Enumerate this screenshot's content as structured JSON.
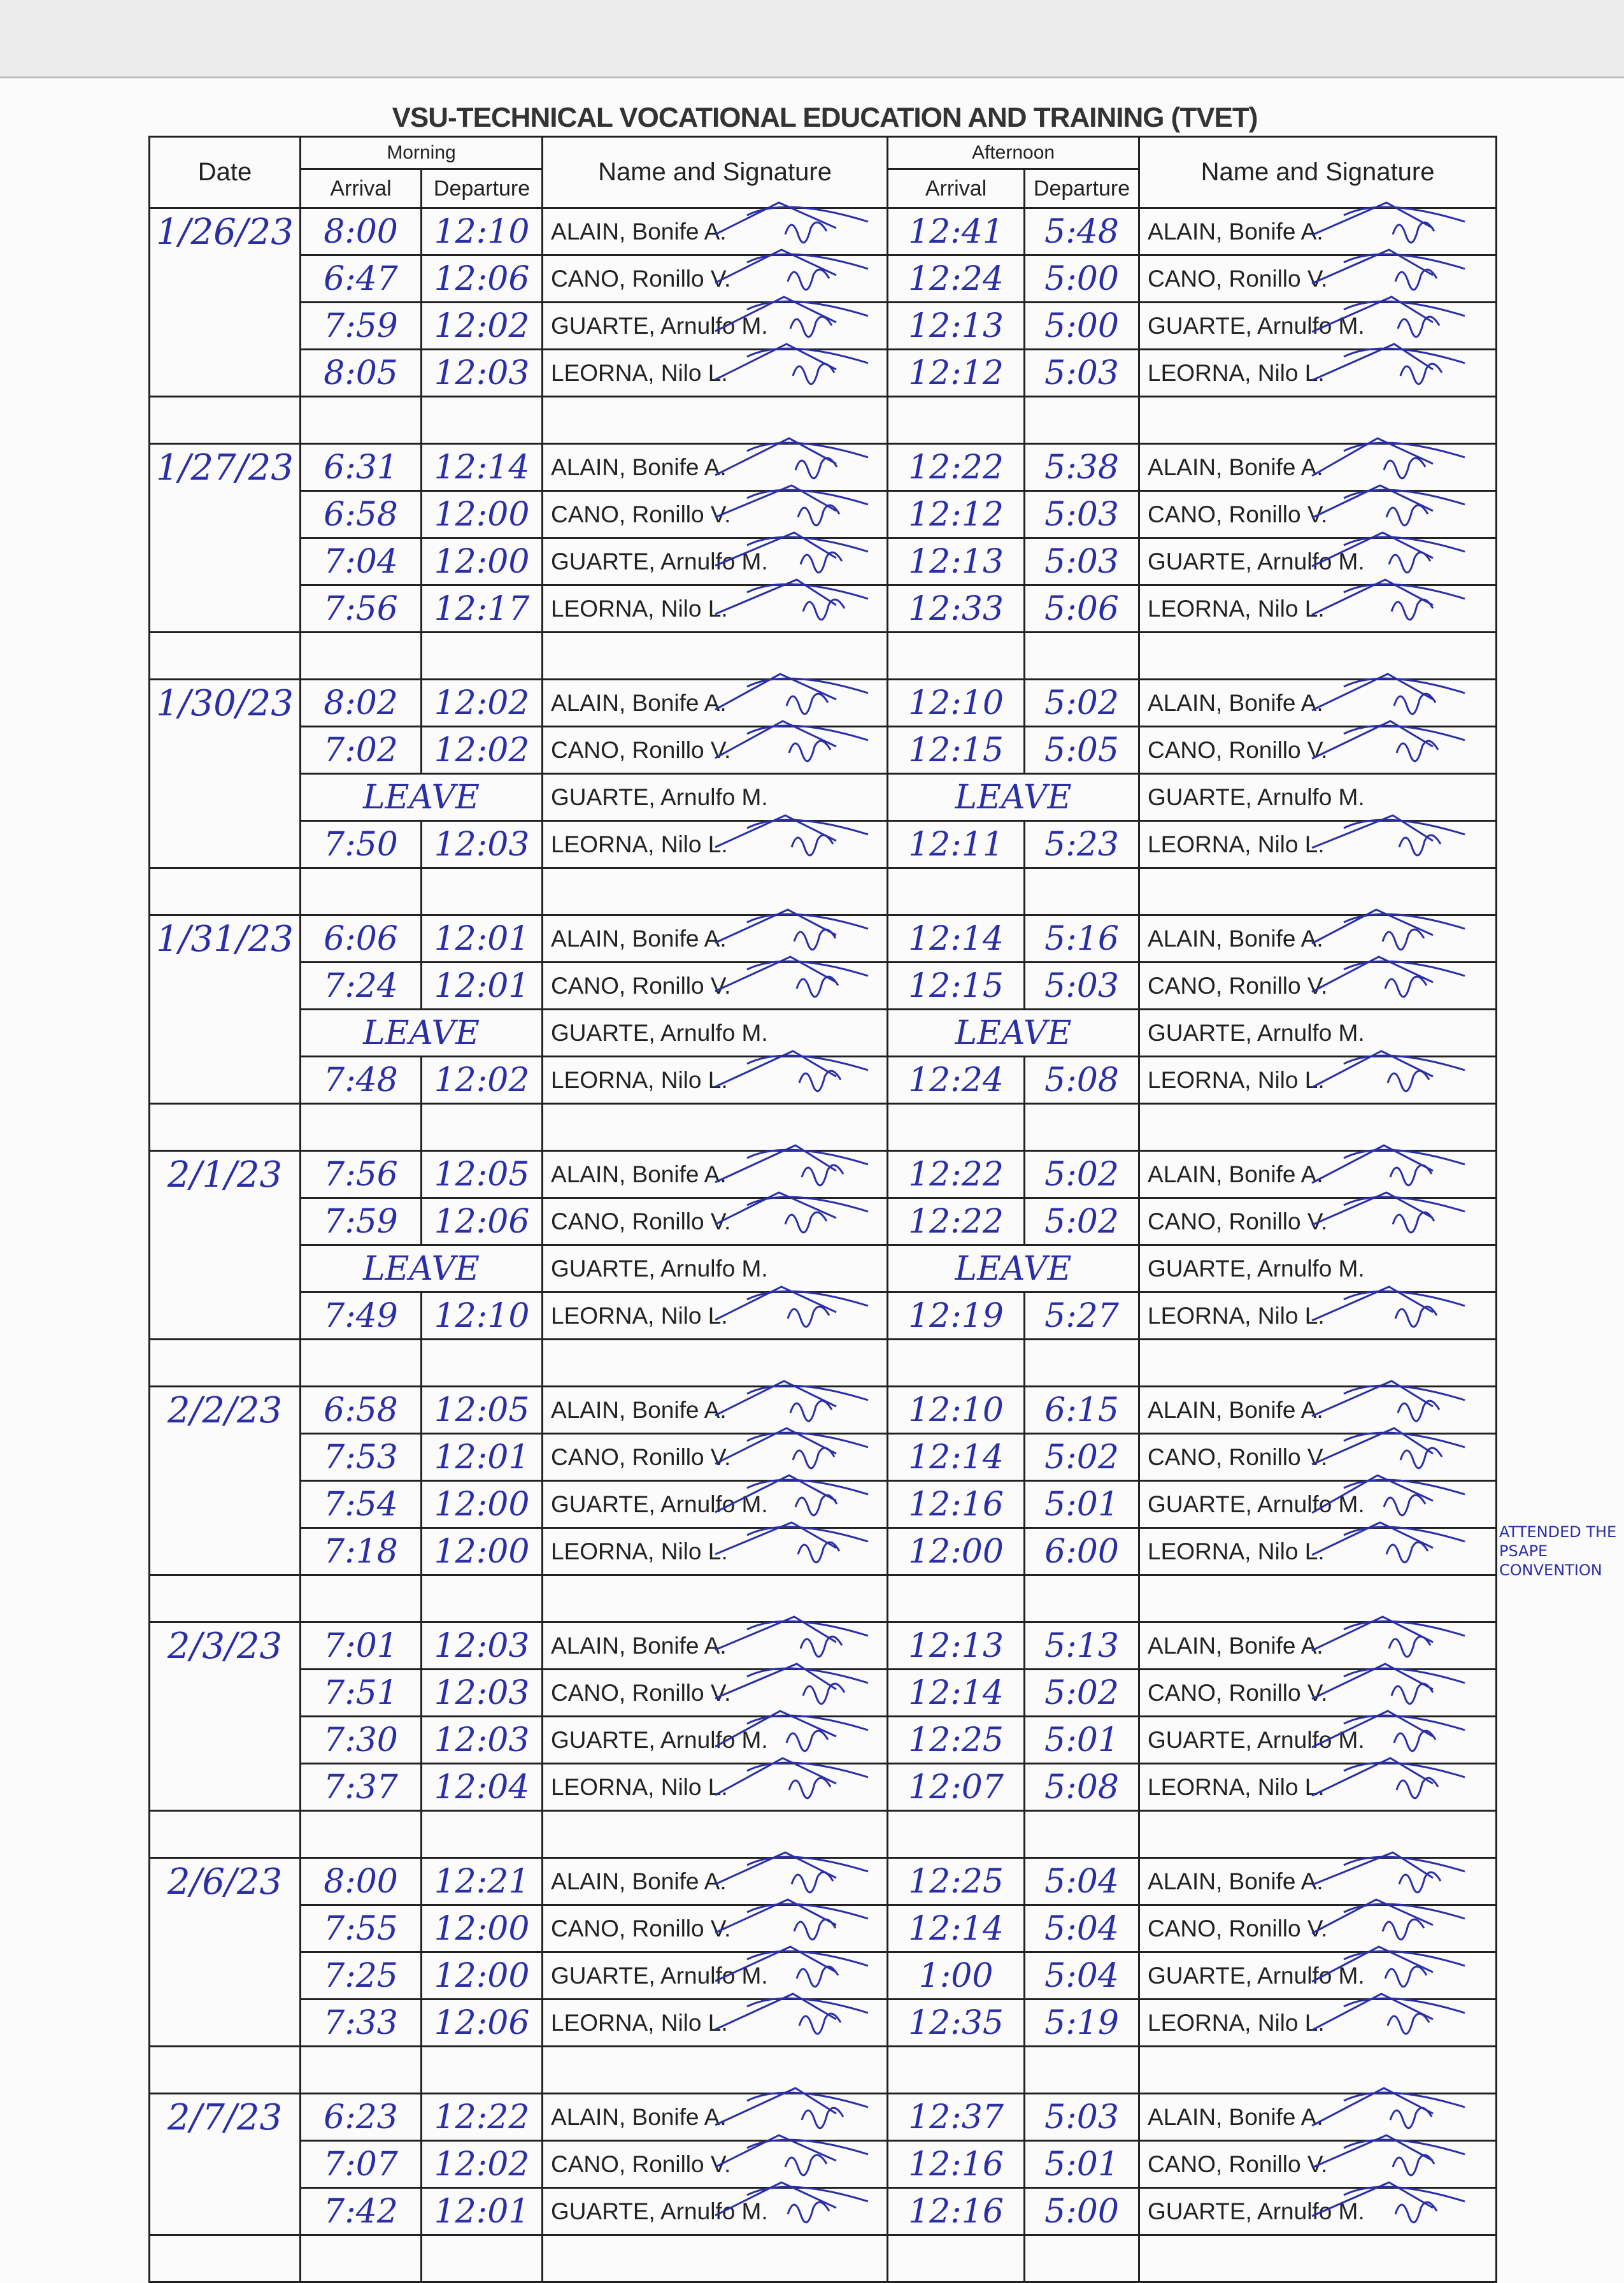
{
  "header": {
    "title": "VSU-TECHNICAL VOCATIONAL EDUCATION AND TRAINING (TVET)",
    "date": "Date",
    "morning": "Morning",
    "afternoon": "Afternoon",
    "arrival": "Arrival",
    "departure": "Departure",
    "name_signature": "Name and Signature"
  },
  "groups": [
    {
      "date": "1/26/23",
      "rows": [
        {
          "name": "ALAIN, Bonife A.",
          "am_arrival": "8:00",
          "am_departure": "12:10",
          "pm_arrival": "12:41",
          "pm_departure": "5:48"
        },
        {
          "name": "CANO, Ronillo V.",
          "am_arrival": "6:47",
          "am_departure": "12:06",
          "pm_arrival": "12:24",
          "pm_departure": "5:00"
        },
        {
          "name": "GUARTE, Arnulfo M.",
          "am_arrival": "7:59",
          "am_departure": "12:02",
          "pm_arrival": "12:13",
          "pm_departure": "5:00"
        },
        {
          "name": "LEORNA, Nilo L.",
          "am_arrival": "8:05",
          "am_departure": "12:03",
          "pm_arrival": "12:12",
          "pm_departure": "5:03"
        }
      ]
    },
    {
      "date": "1/27/23",
      "rows": [
        {
          "name": "ALAIN, Bonife A.",
          "am_arrival": "6:31",
          "am_departure": "12:14",
          "pm_arrival": "12:22",
          "pm_departure": "5:38"
        },
        {
          "name": "CANO, Ronillo V.",
          "am_arrival": "6:58",
          "am_departure": "12:00",
          "pm_arrival": "12:12",
          "pm_departure": "5:03"
        },
        {
          "name": "GUARTE, Arnulfo M.",
          "am_arrival": "7:04",
          "am_departure": "12:00",
          "pm_arrival": "12:13",
          "pm_departure": "5:03"
        },
        {
          "name": "LEORNA, Nilo L.",
          "am_arrival": "7:56",
          "am_departure": "12:17",
          "pm_arrival": "12:33",
          "pm_departure": "5:06"
        }
      ]
    },
    {
      "date": "1/30/23",
      "rows": [
        {
          "name": "ALAIN, Bonife A.",
          "am_arrival": "8:02",
          "am_departure": "12:02",
          "pm_arrival": "12:10",
          "pm_departure": "5:02"
        },
        {
          "name": "CANO, Ronillo V.",
          "am_arrival": "7:02",
          "am_departure": "12:02",
          "pm_arrival": "12:15",
          "pm_departure": "5:05"
        },
        {
          "name": "GUARTE, Arnulfo M.",
          "am": "LEAVE",
          "pm": "LEAVE"
        },
        {
          "name": "LEORNA, Nilo L.",
          "am_arrival": "7:50",
          "am_departure": "12:03",
          "pm_arrival": "12:11",
          "pm_departure": "5:23"
        }
      ]
    },
    {
      "date": "1/31/23",
      "rows": [
        {
          "name": "ALAIN, Bonife A.",
          "am_arrival": "6:06",
          "am_departure": "12:01",
          "pm_arrival": "12:14",
          "pm_departure": "5:16"
        },
        {
          "name": "CANO, Ronillo V.",
          "am_arrival": "7:24",
          "am_departure": "12:01",
          "pm_arrival": "12:15",
          "pm_departure": "5:03"
        },
        {
          "name": "GUARTE, Arnulfo M.",
          "am": "LEAVE",
          "pm": "LEAVE"
        },
        {
          "name": "LEORNA, Nilo L.",
          "am_arrival": "7:48",
          "am_departure": "12:02",
          "pm_arrival": "12:24",
          "pm_departure": "5:08"
        }
      ]
    },
    {
      "date": "2/1/23",
      "rows": [
        {
          "name": "ALAIN, Bonife A.",
          "am_arrival": "7:56",
          "am_departure": "12:05",
          "pm_arrival": "12:22",
          "pm_departure": "5:02"
        },
        {
          "name": "CANO, Ronillo V.",
          "am_arrival": "7:59",
          "am_departure": "12:06",
          "pm_arrival": "12:22",
          "pm_departure": "5:02"
        },
        {
          "name": "GUARTE, Arnulfo M.",
          "am": "LEAVE",
          "pm": "LEAVE"
        },
        {
          "name": "LEORNA, Nilo L.",
          "am_arrival": "7:49",
          "am_departure": "12:10",
          "pm_arrival": "12:19",
          "pm_departure": "5:27"
        }
      ]
    },
    {
      "date": "2/2/23",
      "rows": [
        {
          "name": "ALAIN, Bonife A.",
          "am_arrival": "6:58",
          "am_departure": "12:05",
          "pm_arrival": "12:10",
          "pm_departure": "6:15"
        },
        {
          "name": "CANO, Ronillo V.",
          "am_arrival": "7:53",
          "am_departure": "12:01",
          "pm_arrival": "12:14",
          "pm_departure": "5:02"
        },
        {
          "name": "GUARTE, Arnulfo M.",
          "am_arrival": "7:54",
          "am_departure": "12:00",
          "pm_arrival": "12:16",
          "pm_departure": "5:01"
        },
        {
          "name": "LEORNA, Nilo L.",
          "am_arrival": "7:18",
          "am_departure": "12:00",
          "pm_arrival": "12:00",
          "pm_departure": "6:00",
          "note": "ATTENDED THE PSAPE CONVENTION"
        }
      ]
    },
    {
      "date": "2/3/23",
      "rows": [
        {
          "name": "ALAIN, Bonife A.",
          "am_arrival": "7:01",
          "am_departure": "12:03",
          "pm_arrival": "12:13",
          "pm_departure": "5:13"
        },
        {
          "name": "CANO, Ronillo V.",
          "am_arrival": "7:51",
          "am_departure": "12:03",
          "pm_arrival": "12:14",
          "pm_departure": "5:02"
        },
        {
          "name": "GUARTE, Arnulfo M.",
          "am_arrival": "7:30",
          "am_departure": "12:03",
          "pm_arrival": "12:25",
          "pm_departure": "5:01"
        },
        {
          "name": "LEORNA, Nilo L.",
          "am_arrival": "7:37",
          "am_departure": "12:04",
          "pm_arrival": "12:07",
          "pm_departure": "5:08"
        }
      ]
    },
    {
      "date": "2/6/23",
      "rows": [
        {
          "name": "ALAIN, Bonife A.",
          "am_arrival": "8:00",
          "am_departure": "12:21",
          "pm_arrival": "12:25",
          "pm_departure": "5:04"
        },
        {
          "name": "CANO, Ronillo V.",
          "am_arrival": "7:55",
          "am_departure": "12:00",
          "pm_arrival": "12:14",
          "pm_departure": "5:04"
        },
        {
          "name": "GUARTE, Arnulfo M.",
          "am_arrival": "7:25",
          "am_departure": "12:00",
          "pm_arrival": "1:00",
          "pm_departure": "5:04"
        },
        {
          "name": "LEORNA, Nilo L.",
          "am_arrival": "7:33",
          "am_departure": "12:06",
          "pm_arrival": "12:35",
          "pm_departure": "5:19"
        }
      ]
    },
    {
      "date": "2/7/23",
      "rows": [
        {
          "name": "ALAIN, Bonife A.",
          "am_arrival": "6:23",
          "am_departure": "12:22",
          "pm_arrival": "12:37",
          "pm_departure": "5:03"
        },
        {
          "name": "CANO, Ronillo V.",
          "am_arrival": "7:07",
          "am_departure": "12:02",
          "pm_arrival": "12:16",
          "pm_departure": "5:01"
        },
        {
          "name": "GUARTE, Arnulfo M.",
          "am_arrival": "7:42",
          "am_departure": "12:01",
          "pm_arrival": "12:16",
          "pm_departure": "5:00"
        }
      ]
    }
  ]
}
